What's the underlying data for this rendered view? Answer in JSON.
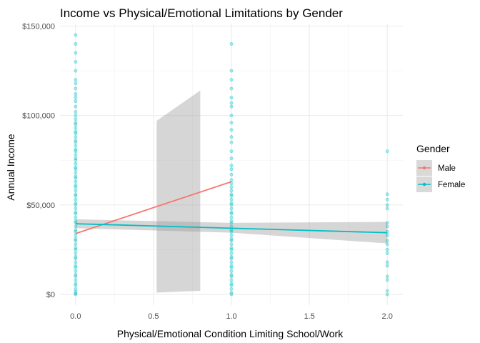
{
  "chart_data": {
    "type": "scatter",
    "title": "Income vs Physical/Emotional Limitations by Gender",
    "xlabel": "Physical/Emotional Condition Limiting School/Work",
    "ylabel": "Annual Income",
    "xlim": [
      -0.1,
      2.1
    ],
    "ylim": [
      -6000,
      151000
    ],
    "x_ticks": [
      0.0,
      0.5,
      1.0,
      1.5,
      2.0
    ],
    "x_tick_labels": [
      "0.0",
      "0.5",
      "1.0",
      "1.5",
      "2.0"
    ],
    "y_ticks": [
      0,
      50000,
      100000,
      150000
    ],
    "y_tick_labels": [
      "$0",
      "$50,000",
      "$100,000",
      "$150,000"
    ],
    "grid": true,
    "legend": {
      "title": "Gender",
      "position": "right",
      "entries": [
        {
          "label": "Male",
          "color": "#F8766D"
        },
        {
          "label": "Female",
          "color": "#00BFC4"
        }
      ]
    },
    "points": {
      "color": "#00BFC4",
      "groups": [
        {
          "x": 0.0,
          "y": [
            145000,
            140000,
            135000,
            130000,
            125000,
            120000,
            118000,
            115000,
            112000,
            110000,
            108000,
            105000,
            102000,
            100000,
            98000,
            96000,
            95000,
            93000,
            91000,
            90000,
            88000,
            86000,
            85000,
            83000,
            81000,
            80000,
            78000,
            76000,
            75000,
            73000,
            71000,
            70000,
            68000,
            66000,
            65000,
            63000,
            61000,
            60000,
            58000,
            56000,
            55000,
            53000,
            51000,
            50000,
            48000,
            46000,
            45000,
            43000,
            41000,
            40000,
            38000,
            36000,
            35000,
            33000,
            31000,
            30000,
            28000,
            26000,
            25000,
            23000,
            21000,
            20000,
            18000,
            16000,
            15000,
            13000,
            11000,
            10000,
            8000,
            6000,
            5000,
            3000,
            1500,
            500,
            0
          ]
        },
        {
          "x": 1.0,
          "y": [
            140000,
            125000,
            120000,
            115000,
            110000,
            107000,
            105000,
            100000,
            96000,
            92000,
            88000,
            85000,
            80000,
            76000,
            72000,
            70000,
            67000,
            64000,
            62000,
            60000,
            58000,
            56000,
            55000,
            53000,
            51000,
            50000,
            48000,
            46000,
            45000,
            43000,
            41000,
            40000,
            38000,
            36000,
            35000,
            33000,
            31000,
            30000,
            28000,
            26000,
            25000,
            23000,
            21000,
            20000,
            18000,
            16000,
            15000,
            13000,
            11000,
            10000,
            8000,
            6000,
            5000,
            3000,
            1000,
            0
          ]
        },
        {
          "x": 2.0,
          "y": [
            80000,
            56000,
            53000,
            50000,
            48000,
            40000,
            38000,
            35000,
            33000,
            30000,
            28000,
            25000,
            23000,
            18000,
            16000,
            10000,
            8000,
            2000,
            0
          ]
        }
      ]
    },
    "series": [
      {
        "name": "Male",
        "color": "#F8766D",
        "fit": [
          [
            0.0,
            34000
          ],
          [
            1.0,
            63000
          ]
        ],
        "ci": {
          "x": [
            0.52,
            0.8
          ],
          "lower": [
            1000,
            2000
          ],
          "upper": [
            97000,
            114000
          ]
        }
      },
      {
        "name": "Female",
        "color": "#00BFC4",
        "fit": [
          [
            0.0,
            39500
          ],
          [
            1.0,
            37000
          ],
          [
            2.0,
            34500
          ]
        ],
        "ci": {
          "x": [
            0.0,
            1.0,
            2.0
          ],
          "lower": [
            37000,
            34500,
            28500
          ],
          "upper": [
            42000,
            40000,
            40500
          ]
        }
      }
    ]
  }
}
